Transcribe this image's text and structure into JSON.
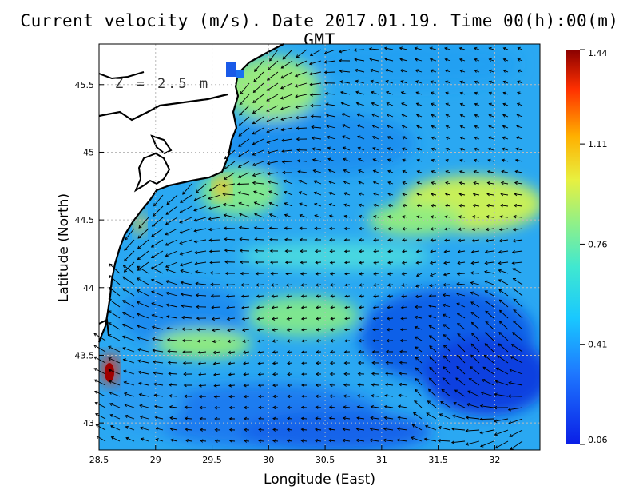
{
  "title": "Current velocity (m/s). Date 2017.01.19. Time 00(h):00(m) GMT",
  "annotation": "Z = 2.5 m",
  "x_axis": {
    "label": "Longitude (East)",
    "range": [
      28.5,
      32.4
    ],
    "ticks": [
      "28.5",
      "29",
      "29.5",
      "30",
      "30.5",
      "31",
      "31.5",
      "32"
    ]
  },
  "y_axis": {
    "label": "Latitude (North)",
    "range": [
      42.8,
      45.8
    ],
    "ticks": [
      "43",
      "43.5",
      "44",
      "44.5",
      "45",
      "45.5"
    ]
  },
  "colorbar": {
    "min": 0.06,
    "max": 1.44,
    "ticks": [
      "0.06",
      "0.41",
      "0.76",
      "1.11",
      "1.44"
    ],
    "colors": [
      "#0a1ee6",
      "#1e78ff",
      "#19c8ff",
      "#40e8d0",
      "#90f088",
      "#e8f040",
      "#ffb000",
      "#ff3000",
      "#8a0000"
    ]
  },
  "land_color": "#ffffff",
  "coast_color": "#000000",
  "grid": "dotted"
}
